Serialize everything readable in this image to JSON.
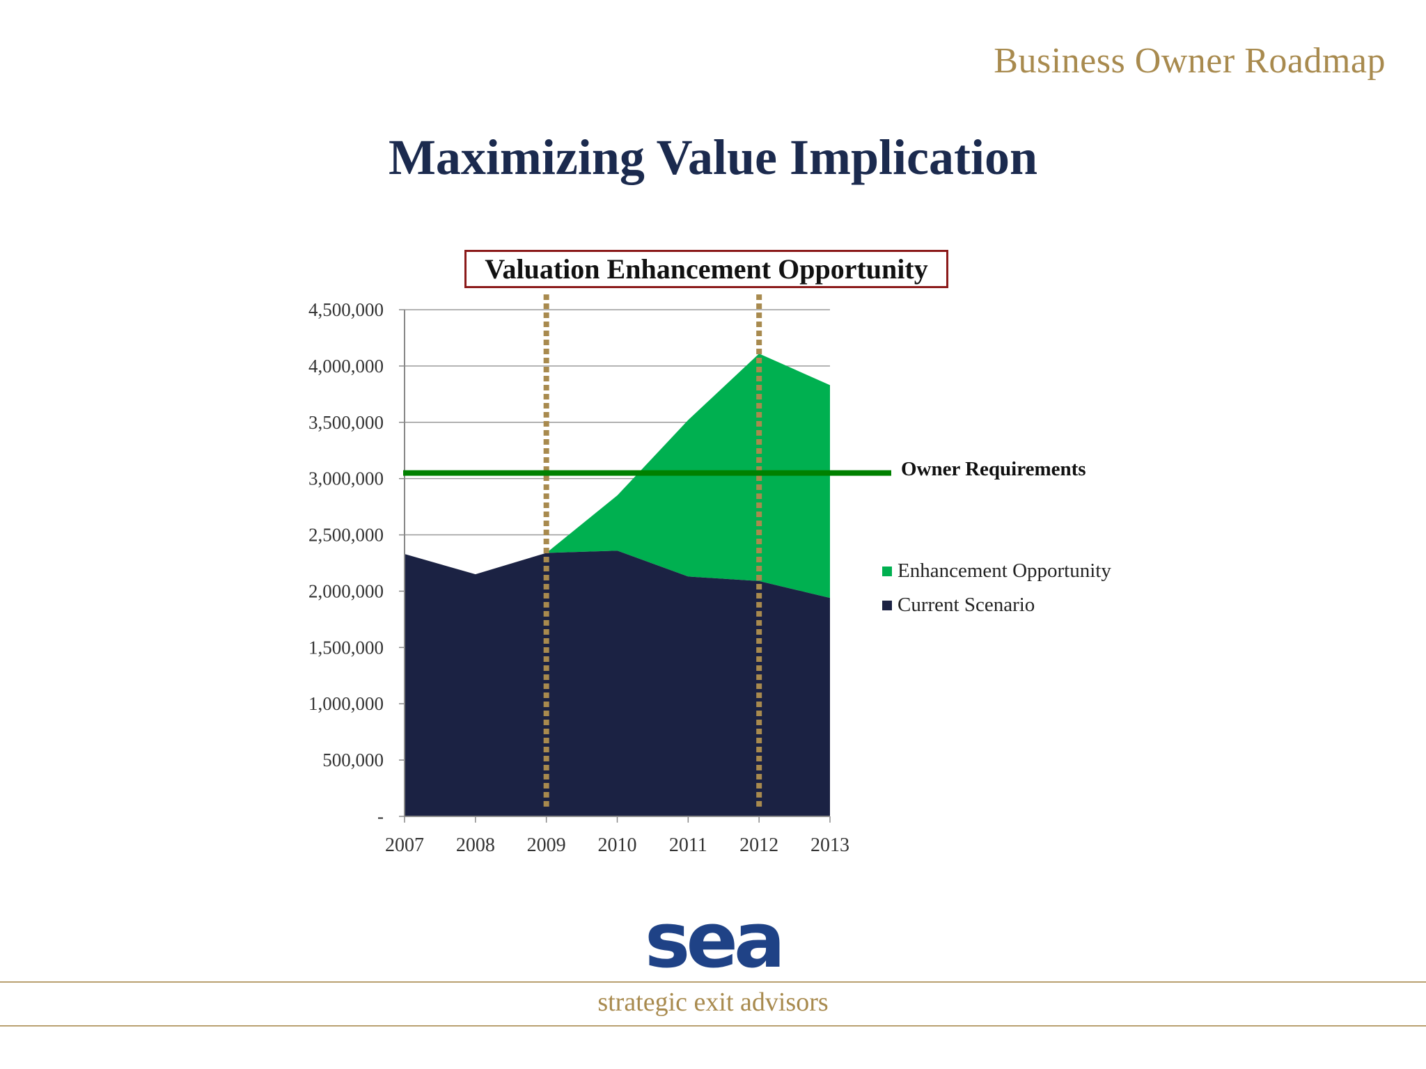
{
  "header": {
    "brand": "Business Owner Roadmap"
  },
  "slide": {
    "title": "Maximizing Value Implication"
  },
  "chart_data": {
    "type": "area",
    "stacked": true,
    "title": "Valuation Enhancement Opportunity",
    "x": [
      "2007",
      "2008",
      "2009",
      "2010",
      "2011",
      "2012",
      "2013"
    ],
    "series": [
      {
        "name": "Current Scenario",
        "color": "#1b2243",
        "values": [
          2330000,
          2150000,
          2340000,
          2360000,
          2130000,
          2090000,
          1940000
        ]
      },
      {
        "name": "Enhancement Opportunity",
        "color": "#00b050",
        "values": [
          0,
          0,
          0,
          490000,
          1390000,
          2020000,
          1890000
        ]
      }
    ],
    "ylim": [
      0,
      4500000
    ],
    "y_ticks": [
      0,
      500000,
      1000000,
      1500000,
      2000000,
      2500000,
      3000000,
      3500000,
      4000000,
      4500000
    ],
    "y_tick_labels": [
      "-",
      "500,000",
      "1,000,000",
      "1,500,000",
      "2,000,000",
      "2,500,000",
      "3,000,000",
      "3,500,000",
      "4,000,000",
      "4,500,000"
    ],
    "grid": true,
    "legend_position": "right",
    "reference_line": {
      "label": "Owner Requirements",
      "value": 3050000,
      "color": "#008000"
    },
    "marker_years": [
      "2009",
      "2012"
    ],
    "marker_color": "#a88a4e"
  },
  "footer": {
    "logo_text": "sea",
    "tagline": "strategic exit advisors"
  }
}
